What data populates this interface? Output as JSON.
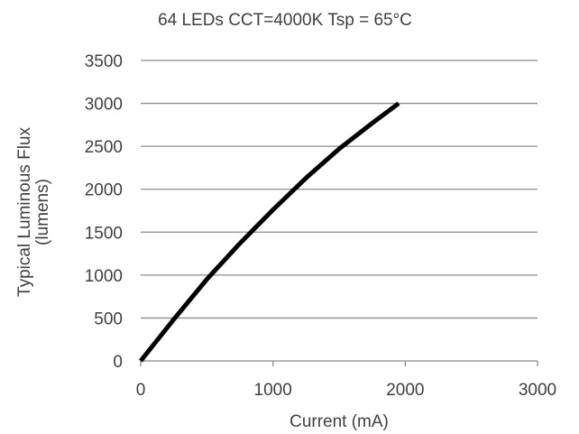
{
  "chart_data": {
    "type": "line",
    "title": "64 LEDs CCT=4000K Tsp = 65°C",
    "xlabel": "Current (mA)",
    "ylabel_lines": [
      "Typical Luminous Flux",
      "(lumens)"
    ],
    "xlim": [
      0,
      3000
    ],
    "ylim": [
      0,
      3500
    ],
    "x_ticks": [
      0,
      1000,
      2000,
      3000
    ],
    "y_ticks": [
      0,
      500,
      1000,
      1500,
      2000,
      2500,
      3000,
      3500
    ],
    "grid": "horizontal",
    "series": [
      {
        "color": "#000000",
        "x": [
          0,
          250,
          500,
          750,
          1000,
          1250,
          1500,
          1750,
          1950
        ],
        "y": [
          0,
          485,
          950,
          1370,
          1760,
          2130,
          2470,
          2770,
          3000
        ]
      }
    ]
  }
}
